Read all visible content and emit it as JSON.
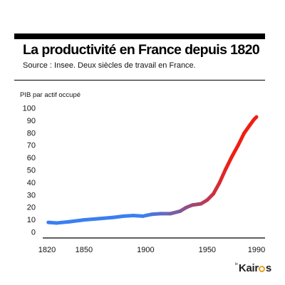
{
  "header": {
    "title": "La productivité en France depuis 1820",
    "subtitle": "Source : Insee. Deux siècles de travail en France."
  },
  "chart_data": {
    "type": "line",
    "title": "La productivité en France depuis 1820",
    "subtitle": "Source : Insee. Deux siècles de travail en France.",
    "xlabel": "",
    "ylabel": "PIB par actif occupé",
    "xlim": [
      1820,
      1990
    ],
    "ylim": [
      0,
      100
    ],
    "x_ticks": [
      1820,
      1850,
      1900,
      1950,
      1990
    ],
    "y_ticks": [
      0,
      10,
      20,
      30,
      40,
      50,
      60,
      70,
      80,
      90,
      100
    ],
    "grid": false,
    "legend": "none",
    "series": [
      {
        "color_start": "#3a7ff2",
        "color_end": "#f01e12",
        "x": [
          1821,
          1828,
          1838,
          1850,
          1862,
          1874,
          1882,
          1890,
          1898,
          1900,
          1905,
          1912,
          1920,
          1928,
          1933,
          1938,
          1945,
          1950,
          1955,
          1960,
          1965,
          1970,
          1975,
          1980,
          1985,
          1988,
          1990
        ],
        "y": [
          8,
          7.5,
          8.5,
          10,
          11,
          12,
          13,
          13.5,
          13,
          13.5,
          14.5,
          15,
          15,
          17,
          20,
          22,
          23,
          26,
          31,
          40,
          51,
          61,
          70,
          80,
          87,
          91,
          93
        ]
      }
    ]
  },
  "logo": {
    "small_text": "le",
    "name_part1": "Kair",
    "name_part2": "s"
  }
}
